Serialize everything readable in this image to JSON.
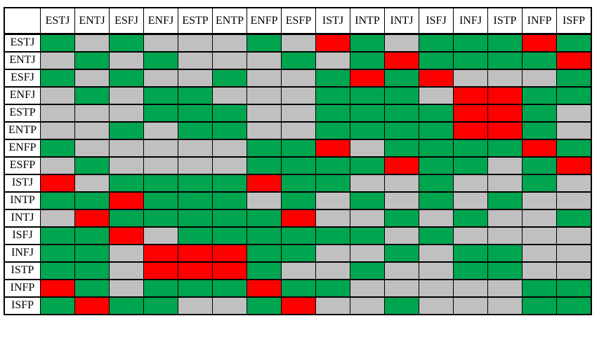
{
  "chart_data": {
    "type": "heatmap",
    "title": "",
    "columns": [
      "ESTJ",
      "ENTJ",
      "ESFJ",
      "ENFJ",
      "ESTP",
      "ENTP",
      "ENFP",
      "ESFP",
      "ISTJ",
      "INTP",
      "INTJ",
      "ISFJ",
      "INFJ",
      "ISTP",
      "INFP",
      "ISFP"
    ],
    "rows": [
      "ESTJ",
      "ENTJ",
      "ESFJ",
      "ENFJ",
      "ESTP",
      "ENTP",
      "ENFP",
      "ESFP",
      "ISTJ",
      "INTP",
      "INTJ",
      "ISFJ",
      "INFJ",
      "ISTP",
      "INFP",
      "ISFP"
    ],
    "cell_colors": {
      "green": "#00A550",
      "gray": "#C0C0C0",
      "red": "#FF0000"
    },
    "layout": {
      "grid_border_color": "#000000",
      "background": "#FFFFFF",
      "legend_position": "none"
    },
    "cells": [
      [
        "green",
        "gray",
        "green",
        "gray",
        "gray",
        "gray",
        "green",
        "gray",
        "red",
        "green",
        "gray",
        "green",
        "green",
        "green",
        "red",
        "green"
      ],
      [
        "gray",
        "green",
        "gray",
        "green",
        "gray",
        "gray",
        "gray",
        "green",
        "gray",
        "green",
        "red",
        "green",
        "green",
        "green",
        "green",
        "red"
      ],
      [
        "green",
        "gray",
        "green",
        "gray",
        "gray",
        "green",
        "gray",
        "gray",
        "green",
        "red",
        "green",
        "red",
        "gray",
        "gray",
        "gray",
        "green"
      ],
      [
        "gray",
        "green",
        "gray",
        "green",
        "green",
        "gray",
        "gray",
        "gray",
        "green",
        "green",
        "green",
        "gray",
        "red",
        "red",
        "green",
        "green"
      ],
      [
        "gray",
        "gray",
        "gray",
        "green",
        "green",
        "green",
        "gray",
        "gray",
        "green",
        "green",
        "green",
        "green",
        "red",
        "red",
        "green",
        "gray"
      ],
      [
        "gray",
        "gray",
        "green",
        "gray",
        "green",
        "green",
        "gray",
        "gray",
        "green",
        "green",
        "green",
        "green",
        "red",
        "red",
        "green",
        "gray"
      ],
      [
        "green",
        "gray",
        "gray",
        "gray",
        "gray",
        "gray",
        "green",
        "green",
        "red",
        "gray",
        "green",
        "green",
        "green",
        "green",
        "red",
        "green"
      ],
      [
        "gray",
        "green",
        "gray",
        "gray",
        "gray",
        "gray",
        "green",
        "green",
        "green",
        "green",
        "red",
        "green",
        "green",
        "gray",
        "green",
        "red"
      ],
      [
        "red",
        "gray",
        "green",
        "green",
        "green",
        "green",
        "red",
        "green",
        "green",
        "gray",
        "gray",
        "green",
        "gray",
        "gray",
        "green",
        "gray"
      ],
      [
        "green",
        "green",
        "red",
        "green",
        "green",
        "green",
        "gray",
        "green",
        "gray",
        "green",
        "gray",
        "green",
        "gray",
        "green",
        "gray",
        "gray"
      ],
      [
        "gray",
        "red",
        "green",
        "green",
        "green",
        "green",
        "green",
        "red",
        "gray",
        "gray",
        "green",
        "gray",
        "green",
        "gray",
        "gray",
        "green"
      ],
      [
        "green",
        "green",
        "red",
        "gray",
        "green",
        "green",
        "green",
        "green",
        "green",
        "green",
        "gray",
        "green",
        "gray",
        "gray",
        "gray",
        "gray"
      ],
      [
        "green",
        "green",
        "gray",
        "red",
        "red",
        "red",
        "green",
        "green",
        "gray",
        "gray",
        "green",
        "gray",
        "green",
        "green",
        "gray",
        "gray"
      ],
      [
        "green",
        "green",
        "gray",
        "red",
        "red",
        "red",
        "green",
        "gray",
        "gray",
        "green",
        "gray",
        "gray",
        "green",
        "green",
        "gray",
        "gray"
      ],
      [
        "red",
        "green",
        "gray",
        "green",
        "green",
        "green",
        "red",
        "green",
        "green",
        "gray",
        "gray",
        "gray",
        "gray",
        "gray",
        "green",
        "green"
      ],
      [
        "green",
        "red",
        "green",
        "green",
        "gray",
        "gray",
        "green",
        "red",
        "gray",
        "gray",
        "green",
        "gray",
        "gray",
        "gray",
        "green",
        "green"
      ]
    ]
  }
}
